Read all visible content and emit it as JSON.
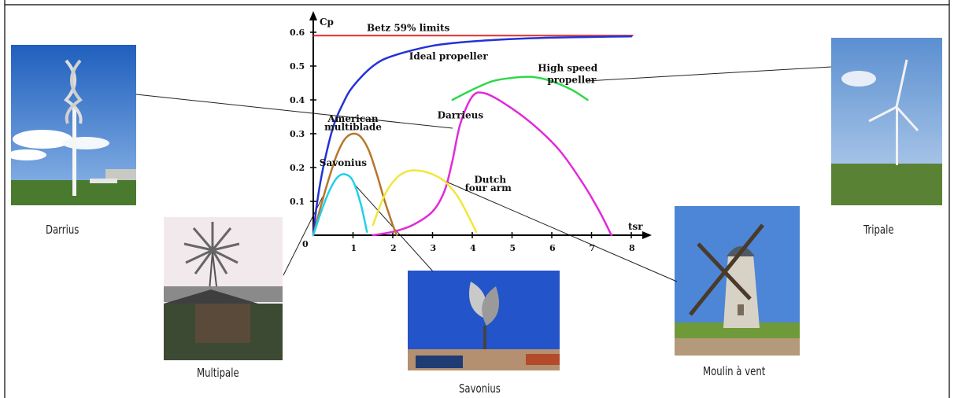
{
  "photos": [
    {
      "name": "darrius",
      "caption": "Darrius"
    },
    {
      "name": "multipale",
      "caption": "Multipale"
    },
    {
      "name": "savonius",
      "caption": "Savonius"
    },
    {
      "name": "moulin",
      "caption": "Moulin à vent"
    },
    {
      "name": "tripale",
      "caption": "Tripale"
    }
  ],
  "chart_data": {
    "type": "line",
    "xlabel": "tsr",
    "ylabel": "Cp",
    "xlim": [
      0,
      8
    ],
    "ylim": [
      0,
      0.6
    ],
    "xticks": [
      "0",
      "1",
      "2",
      "3",
      "4",
      "5",
      "6",
      "7",
      "8"
    ],
    "yticks": [
      "0.1",
      "0.2",
      "0.3",
      "0.4",
      "0.5",
      "0.6"
    ],
    "betz": {
      "label": "Betz 59% limits",
      "value": 0.59,
      "color": "#e03030"
    },
    "series": [
      {
        "name": "Ideal propeller",
        "color": "#2433d6",
        "x": [
          0,
          0.1,
          0.25,
          0.5,
          0.75,
          1,
          1.5,
          2,
          3,
          4,
          5,
          6,
          7,
          8
        ],
        "y": [
          0,
          0.1,
          0.2,
          0.32,
          0.39,
          0.44,
          0.5,
          0.53,
          0.56,
          0.573,
          0.58,
          0.584,
          0.586,
          0.588
        ]
      },
      {
        "name": "High speed propeller",
        "color": "#2ed84a",
        "x": [
          3.5,
          4,
          4.5,
          5,
          5.5,
          6,
          6.5,
          6.9
        ],
        "y": [
          0.4,
          0.43,
          0.455,
          0.465,
          0.468,
          0.455,
          0.43,
          0.4
        ]
      },
      {
        "name": "Darrieus",
        "color": "#e22ad8",
        "x": [
          1.5,
          2,
          2.5,
          3,
          3.3,
          3.5,
          3.7,
          4,
          4.3,
          4.8,
          5.5,
          6.2,
          6.8,
          7.2,
          7.5
        ],
        "y": [
          0,
          0.01,
          0.03,
          0.07,
          0.13,
          0.22,
          0.33,
          0.41,
          0.42,
          0.39,
          0.33,
          0.25,
          0.15,
          0.07,
          0
        ]
      },
      {
        "name": "American multiblade",
        "color": "#b8752a",
        "x": [
          0,
          0.2,
          0.4,
          0.6,
          0.8,
          1,
          1.2,
          1.4,
          1.6,
          1.8,
          2,
          2.1
        ],
        "y": [
          0,
          0.09,
          0.17,
          0.24,
          0.285,
          0.3,
          0.29,
          0.25,
          0.18,
          0.1,
          0.03,
          0
        ]
      },
      {
        "name": "Savonius",
        "color": "#22d0e8",
        "x": [
          0,
          0.2,
          0.4,
          0.6,
          0.8,
          1,
          1.2,
          1.35
        ],
        "y": [
          0,
          0.07,
          0.13,
          0.17,
          0.18,
          0.16,
          0.09,
          0.01
        ]
      },
      {
        "name": "Dutch four arm",
        "color": "#f2e63a",
        "x": [
          1.5,
          1.8,
          2.1,
          2.4,
          2.7,
          3,
          3.3,
          3.6,
          3.8,
          4.1
        ],
        "y": [
          0.03,
          0.12,
          0.17,
          0.19,
          0.19,
          0.18,
          0.16,
          0.12,
          0.08,
          0.01
        ]
      }
    ],
    "annotations": [
      {
        "text": "Ideal propeller",
        "x": 3.4,
        "y": 0.52
      },
      {
        "text": "High speed",
        "x": 6.4,
        "y": 0.485
      },
      {
        "text": "propeller",
        "x": 6.5,
        "y": 0.45
      },
      {
        "text": "American",
        "x": 1.0,
        "y": 0.335
      },
      {
        "text": "multiblade",
        "x": 1.0,
        "y": 0.31
      },
      {
        "text": "Darrieus",
        "x": 3.7,
        "y": 0.345
      },
      {
        "text": "Savonius",
        "x": 0.75,
        "y": 0.205
      },
      {
        "text": "Dutch",
        "x": 4.45,
        "y": 0.155
      },
      {
        "text": "four arm",
        "x": 4.4,
        "y": 0.13
      }
    ]
  }
}
